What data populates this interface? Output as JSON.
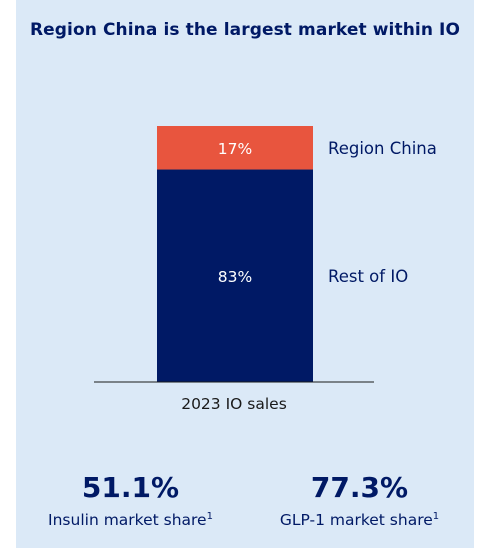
{
  "title": "Region China is the largest market within IO",
  "chart_data": {
    "type": "bar",
    "stacked": true,
    "categories": [
      "2023 IO sales"
    ],
    "series": [
      {
        "name": "Rest of IO",
        "values": [
          83
        ],
        "label": "83%",
        "color": "#001965"
      },
      {
        "name": "Region China",
        "values": [
          17
        ],
        "label": "17%",
        "color": "#e8553e"
      }
    ],
    "ylim": [
      0,
      100
    ],
    "legend": "right",
    "grid": false
  },
  "stats": [
    {
      "value": "51.1%",
      "label": "Insulin market share",
      "footnote": "1"
    },
    {
      "value": "77.3%",
      "label": "GLP-1 market share",
      "footnote": "1"
    }
  ]
}
